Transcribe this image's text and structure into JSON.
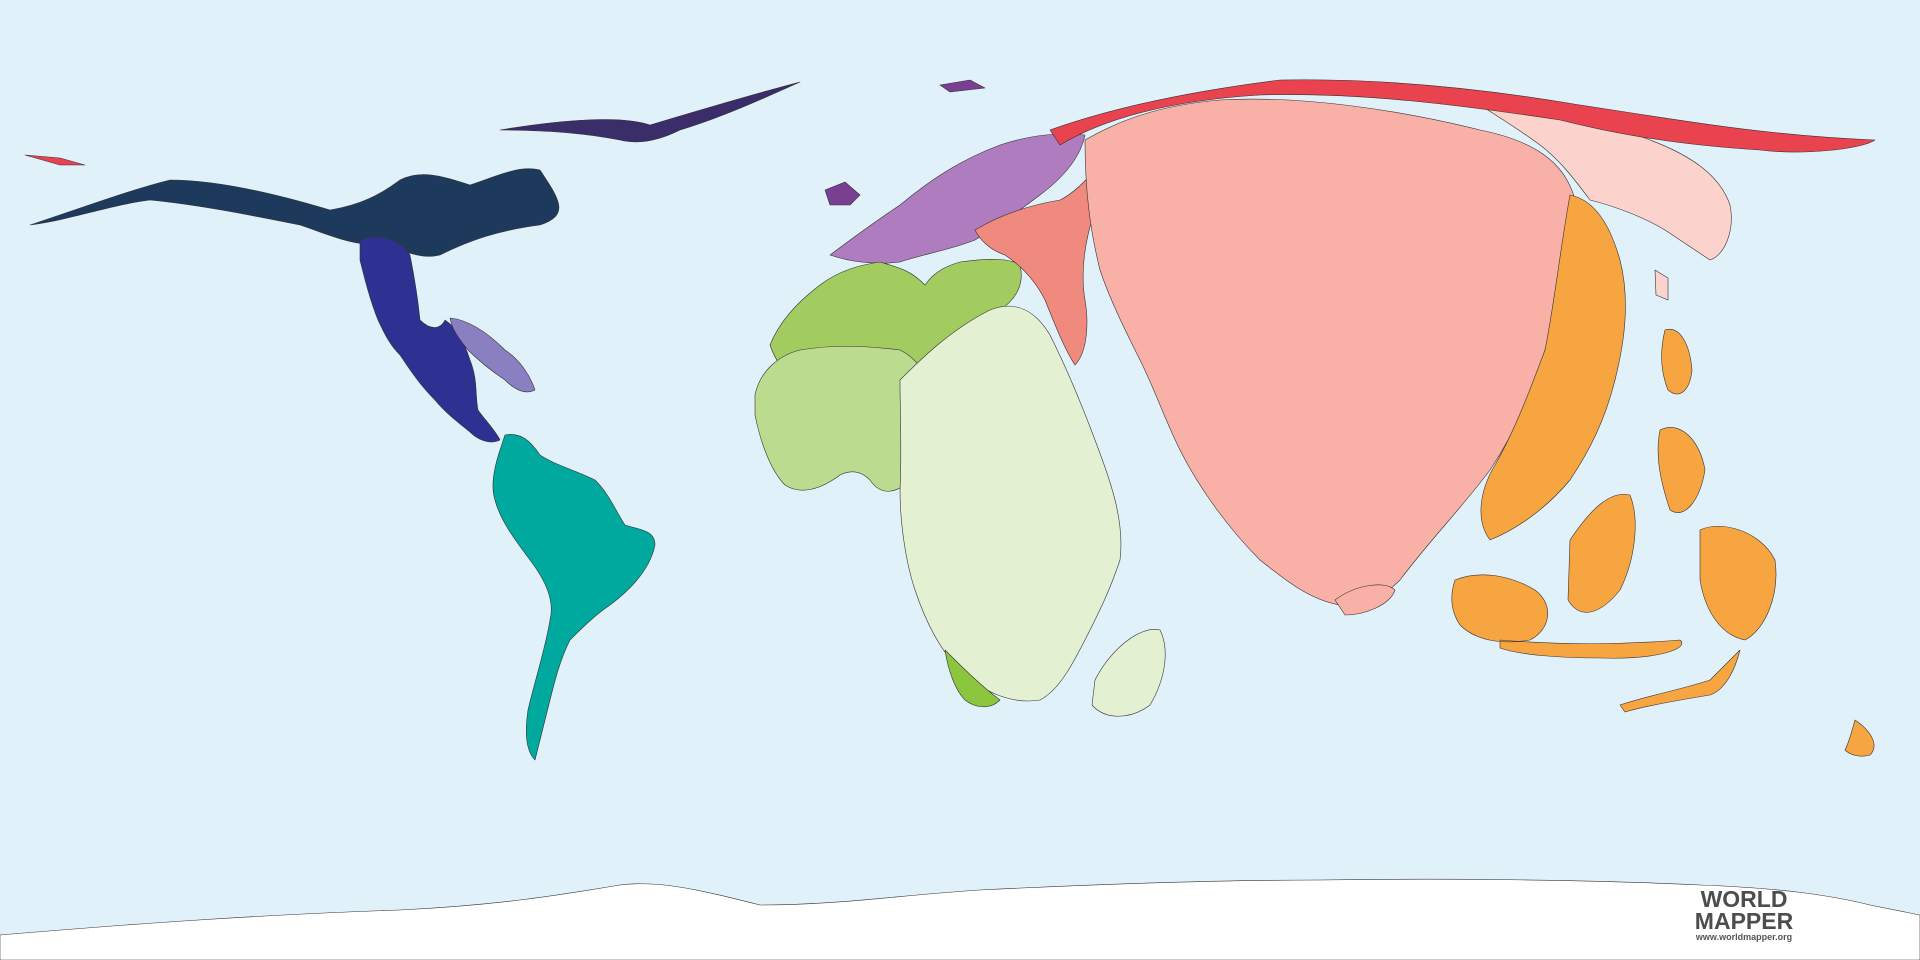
{
  "logo": {
    "line1": "WORLD",
    "line2": "MAPPER",
    "url": "www.worldmapper.org"
  },
  "colors": {
    "ocean": "#e1f1f9",
    "antarctica": "#ffffff",
    "north_america": "#2e3192",
    "canada_arctic": "#1d3a5c",
    "caribbean": "#8a7fc0",
    "south_america": "#00a99d",
    "europe": "#b07cc0",
    "europe_east": "#7b3f91",
    "north_africa": "#a2cc5f",
    "west_africa": "#bbdc8f",
    "sub_saharan_africa": "#e3f0d2",
    "southern_africa": "#8cc63f",
    "middle_east": "#f08a7e",
    "south_asia": "#f9b0a6",
    "east_asia": "#fbd3cc",
    "russia": "#e8434f",
    "southeast_asia_oceania": "#f7a541"
  }
}
